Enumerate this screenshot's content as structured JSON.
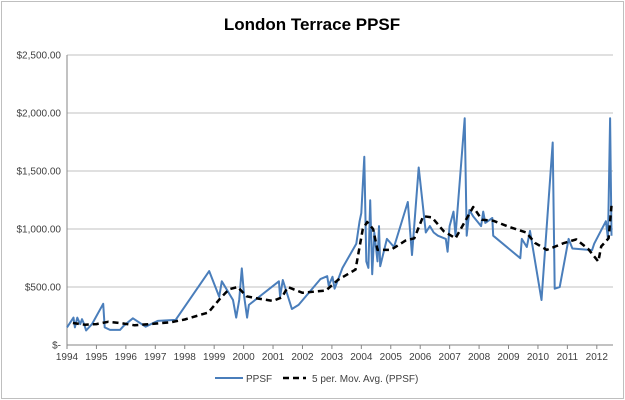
{
  "chart_data": {
    "type": "line",
    "title": "London Terrace PPSF",
    "xlabel": "",
    "ylabel": "",
    "xlim": [
      1994,
      2012.55
    ],
    "ylim": [
      0,
      2500
    ],
    "grid": true,
    "legend_position": "bottom",
    "x_ticks": [
      "1994",
      "1995",
      "1996",
      "1997",
      "1998",
      "1999",
      "2000",
      "2001",
      "2002",
      "2003",
      "2004",
      "2005",
      "2006",
      "2007",
      "2008",
      "2009",
      "2010",
      "2011",
      "2012"
    ],
    "y_ticks": [
      {
        "value": 0,
        "label": "$-"
      },
      {
        "value": 500,
        "label": "$500.00"
      },
      {
        "value": 1000,
        "label": "$1,000.00"
      },
      {
        "value": 1500,
        "label": "$1,500.00"
      },
      {
        "value": 2000,
        "label": "$2,000.00"
      },
      {
        "value": 2500,
        "label": "$2,500.00"
      }
    ],
    "series": [
      {
        "name": "PPSF",
        "color": "#4a7ebb",
        "style": "solid",
        "points": [
          [
            1994.0,
            152
          ],
          [
            1994.22,
            236
          ],
          [
            1994.27,
            152
          ],
          [
            1994.35,
            236
          ],
          [
            1994.45,
            180
          ],
          [
            1994.51,
            222
          ],
          [
            1994.58,
            180
          ],
          [
            1994.65,
            125
          ],
          [
            1994.85,
            180
          ],
          [
            1995.23,
            355
          ],
          [
            1995.28,
            152
          ],
          [
            1995.46,
            130
          ],
          [
            1995.8,
            130
          ],
          [
            1995.93,
            166
          ],
          [
            1996.24,
            230
          ],
          [
            1996.67,
            158
          ],
          [
            1997.08,
            208
          ],
          [
            1997.69,
            216
          ],
          [
            1998.83,
            637
          ],
          [
            1999.17,
            416
          ],
          [
            1999.26,
            549
          ],
          [
            1999.64,
            388
          ],
          [
            1999.75,
            236
          ],
          [
            1999.85,
            388
          ],
          [
            1999.94,
            660
          ],
          [
            2000.02,
            416
          ],
          [
            2000.12,
            236
          ],
          [
            2000.18,
            346
          ],
          [
            2001.2,
            549
          ],
          [
            2001.24,
            416
          ],
          [
            2001.33,
            560
          ],
          [
            2001.64,
            310
          ],
          [
            2001.87,
            346
          ],
          [
            2002.61,
            568
          ],
          [
            2002.84,
            593
          ],
          [
            2002.89,
            513
          ],
          [
            2003.02,
            588
          ],
          [
            2003.09,
            485
          ],
          [
            2003.36,
            665
          ],
          [
            2003.83,
            873
          ],
          [
            2003.9,
            998
          ],
          [
            2003.94,
            1067
          ],
          [
            2004.0,
            1137
          ],
          [
            2004.1,
            1622
          ],
          [
            2004.17,
            721
          ],
          [
            2004.24,
            665
          ],
          [
            2004.3,
            1247
          ],
          [
            2004.37,
            610
          ],
          [
            2004.44,
            970
          ],
          [
            2004.55,
            721
          ],
          [
            2004.6,
            1025
          ],
          [
            2004.64,
            679
          ],
          [
            2004.87,
            915
          ],
          [
            2005.11,
            845
          ],
          [
            2005.58,
            1233
          ],
          [
            2005.72,
            776
          ],
          [
            2005.95,
            1530
          ],
          [
            2006.19,
            970
          ],
          [
            2006.33,
            1025
          ],
          [
            2006.46,
            970
          ],
          [
            2006.6,
            942
          ],
          [
            2006.87,
            915
          ],
          [
            2006.93,
            804
          ],
          [
            2007.0,
            1025
          ],
          [
            2007.13,
            1150
          ],
          [
            2007.2,
            942
          ],
          [
            2007.51,
            1954
          ],
          [
            2007.58,
            942
          ],
          [
            2007.67,
            1164
          ],
          [
            2007.8,
            1109
          ],
          [
            2008.07,
            1025
          ],
          [
            2008.14,
            1150
          ],
          [
            2008.21,
            1053
          ],
          [
            2008.45,
            1095
          ],
          [
            2008.48,
            942
          ],
          [
            2009.4,
            748
          ],
          [
            2009.45,
            915
          ],
          [
            2009.62,
            845
          ],
          [
            2009.73,
            984
          ],
          [
            2010.12,
            388
          ],
          [
            2010.5,
            1746
          ],
          [
            2010.57,
            485
          ],
          [
            2010.74,
            499
          ],
          [
            2011.04,
            915
          ],
          [
            2011.17,
            832
          ],
          [
            2011.84,
            818
          ],
          [
            2011.91,
            873
          ],
          [
            2012.31,
            1067
          ],
          [
            2012.38,
            915
          ],
          [
            2012.45,
            1954
          ],
          [
            2012.5,
            942
          ]
        ]
      },
      {
        "name": "5 per. Mov. Avg. (PPSF)",
        "color": "#000000",
        "style": "dashed",
        "points": [
          [
            1994.2,
            190
          ],
          [
            1994.6,
            175
          ],
          [
            1995.0,
            180
          ],
          [
            1995.4,
            200
          ],
          [
            1995.8,
            190
          ],
          [
            1996.3,
            170
          ],
          [
            1996.8,
            180
          ],
          [
            1997.5,
            195
          ],
          [
            1998.0,
            220
          ],
          [
            1998.8,
            280
          ],
          [
            1999.2,
            400
          ],
          [
            1999.5,
            480
          ],
          [
            1999.8,
            500
          ],
          [
            2000.1,
            420
          ],
          [
            2000.5,
            400
          ],
          [
            2001.0,
            380
          ],
          [
            2001.3,
            410
          ],
          [
            2001.5,
            500
          ],
          [
            2002.0,
            450
          ],
          [
            2002.8,
            470
          ],
          [
            2003.2,
            560
          ],
          [
            2003.8,
            650
          ],
          [
            2004.05,
            1000
          ],
          [
            2004.2,
            1060
          ],
          [
            2004.4,
            1000
          ],
          [
            2004.55,
            820
          ],
          [
            2005.0,
            820
          ],
          [
            2005.5,
            900
          ],
          [
            2005.8,
            920
          ],
          [
            2006.1,
            1110
          ],
          [
            2006.4,
            1100
          ],
          [
            2006.8,
            980
          ],
          [
            2007.2,
            920
          ],
          [
            2007.6,
            1100
          ],
          [
            2007.8,
            1190
          ],
          [
            2008.1,
            1080
          ],
          [
            2008.5,
            1070
          ],
          [
            2009.0,
            1020
          ],
          [
            2009.6,
            970
          ],
          [
            2009.9,
            880
          ],
          [
            2010.3,
            820
          ],
          [
            2010.6,
            850
          ],
          [
            2010.9,
            880
          ],
          [
            2011.3,
            910
          ],
          [
            2011.7,
            830
          ],
          [
            2012.05,
            720
          ],
          [
            2012.15,
            850
          ],
          [
            2012.4,
            920
          ],
          [
            2012.5,
            1200
          ]
        ]
      }
    ]
  }
}
